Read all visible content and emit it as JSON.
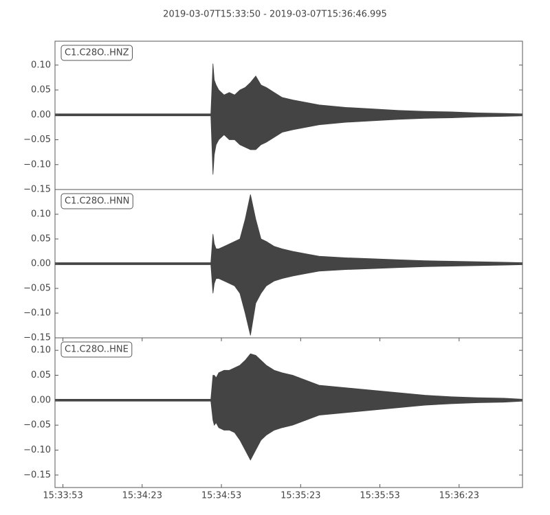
{
  "title": "2019-03-07T15:33:50  -  2019-03-07T15:36:46.995",
  "chart_data": [
    {
      "type": "envelope",
      "label": "C1.C28O..HNZ",
      "color": "#444444",
      "xlim": [
        0,
        176.995
      ],
      "ylim": [
        -0.15,
        0.148
      ],
      "yticks": [
        {
          "value": -0.15,
          "label": "−0.15"
        },
        {
          "value": -0.1,
          "label": "−0.10"
        },
        {
          "value": -0.05,
          "label": "−0.05"
        },
        {
          "value": 0,
          "label": "0.00"
        },
        {
          "value": 0.05,
          "label": "0.05"
        },
        {
          "value": 0.1,
          "label": "0.10"
        }
      ],
      "x": [
        0,
        20,
        40,
        59,
        59.8,
        60.3,
        61,
        62,
        64,
        66,
        68,
        70,
        72,
        74,
        76,
        78,
        80,
        83,
        86,
        90,
        95,
        100,
        110,
        120,
        130,
        140,
        150,
        160,
        170,
        176.995
      ],
      "max": [
        0.002,
        0.002,
        0.002,
        0.002,
        0.103,
        0.07,
        0.06,
        0.05,
        0.04,
        0.045,
        0.04,
        0.05,
        0.055,
        0.065,
        0.078,
        0.06,
        0.055,
        0.045,
        0.035,
        0.03,
        0.025,
        0.02,
        0.015,
        0.012,
        0.009,
        0.007,
        0.006,
        0.004,
        0.003,
        0.002
      ],
      "min": [
        -0.002,
        -0.002,
        -0.002,
        -0.002,
        -0.12,
        -0.08,
        -0.06,
        -0.05,
        -0.04,
        -0.05,
        -0.05,
        -0.06,
        -0.065,
        -0.07,
        -0.07,
        -0.06,
        -0.055,
        -0.045,
        -0.035,
        -0.03,
        -0.025,
        -0.02,
        -0.015,
        -0.012,
        -0.009,
        -0.007,
        -0.006,
        -0.004,
        -0.003,
        -0.002
      ]
    },
    {
      "type": "envelope",
      "label": "C1.C28O..HNN",
      "color": "#444444",
      "xlim": [
        0,
        176.995
      ],
      "ylim": [
        -0.15,
        0.15
      ],
      "yticks": [
        {
          "value": -0.15,
          "label": "−0.15"
        },
        {
          "value": -0.1,
          "label": "−0.10"
        },
        {
          "value": -0.05,
          "label": "−0.05"
        },
        {
          "value": 0,
          "label": "0.00"
        },
        {
          "value": 0.05,
          "label": "0.05"
        },
        {
          "value": 0.1,
          "label": "0.10"
        }
      ],
      "x": [
        0,
        20,
        40,
        59,
        59.8,
        60.3,
        61,
        62,
        64,
        66,
        68,
        70,
        72,
        74,
        76,
        78,
        80,
        83,
        86,
        90,
        95,
        100,
        110,
        120,
        130,
        140,
        150,
        160,
        170,
        176.995
      ],
      "max": [
        0.002,
        0.002,
        0.002,
        0.002,
        0.06,
        0.04,
        0.03,
        0.03,
        0.035,
        0.04,
        0.045,
        0.05,
        0.09,
        0.14,
        0.09,
        0.05,
        0.045,
        0.035,
        0.03,
        0.025,
        0.02,
        0.015,
        0.012,
        0.01,
        0.008,
        0.006,
        0.005,
        0.004,
        0.003,
        0.002
      ],
      "min": [
        -0.002,
        -0.002,
        -0.002,
        -0.002,
        -0.06,
        -0.04,
        -0.03,
        -0.03,
        -0.035,
        -0.04,
        -0.045,
        -0.06,
        -0.1,
        -0.145,
        -0.08,
        -0.06,
        -0.045,
        -0.035,
        -0.03,
        -0.025,
        -0.02,
        -0.015,
        -0.012,
        -0.01,
        -0.008,
        -0.006,
        -0.005,
        -0.004,
        -0.003,
        -0.002
      ]
    },
    {
      "type": "envelope",
      "label": "C1.C28O..HNE",
      "color": "#444444",
      "xlim": [
        0,
        176.995
      ],
      "ylim": [
        -0.175,
        0.125
      ],
      "yticks": [
        {
          "value": -0.15,
          "label": "−0.15"
        },
        {
          "value": -0.1,
          "label": "−0.10"
        },
        {
          "value": -0.05,
          "label": "−0.05"
        },
        {
          "value": 0,
          "label": "0.00"
        },
        {
          "value": 0.05,
          "label": "0.05"
        },
        {
          "value": 0.1,
          "label": "0.10"
        }
      ],
      "xticks": [
        {
          "value": 3,
          "label": "15:33:53"
        },
        {
          "value": 33,
          "label": "15:34:23"
        },
        {
          "value": 63,
          "label": "15:34:53"
        },
        {
          "value": 93,
          "label": "15:35:23"
        },
        {
          "value": 123,
          "label": "15:35:53"
        },
        {
          "value": 153,
          "label": "15:36:23"
        }
      ],
      "x": [
        0,
        20,
        40,
        59,
        59.8,
        60.3,
        61,
        62,
        64,
        66,
        68,
        70,
        72,
        74,
        76,
        78,
        80,
        83,
        86,
        90,
        95,
        100,
        110,
        120,
        130,
        140,
        150,
        160,
        170,
        176.995
      ],
      "max": [
        0.002,
        0.002,
        0.002,
        0.002,
        0.05,
        0.05,
        0.045,
        0.055,
        0.06,
        0.06,
        0.065,
        0.07,
        0.08,
        0.093,
        0.09,
        0.08,
        0.07,
        0.06,
        0.055,
        0.05,
        0.04,
        0.03,
        0.025,
        0.02,
        0.015,
        0.01,
        0.007,
        0.005,
        0.004,
        0.002
      ],
      "min": [
        -0.002,
        -0.002,
        -0.002,
        -0.002,
        -0.04,
        -0.05,
        -0.045,
        -0.055,
        -0.06,
        -0.06,
        -0.065,
        -0.08,
        -0.1,
        -0.12,
        -0.1,
        -0.08,
        -0.07,
        -0.06,
        -0.055,
        -0.05,
        -0.04,
        -0.03,
        -0.025,
        -0.02,
        -0.015,
        -0.01,
        -0.007,
        -0.005,
        -0.004,
        -0.002
      ]
    }
  ]
}
